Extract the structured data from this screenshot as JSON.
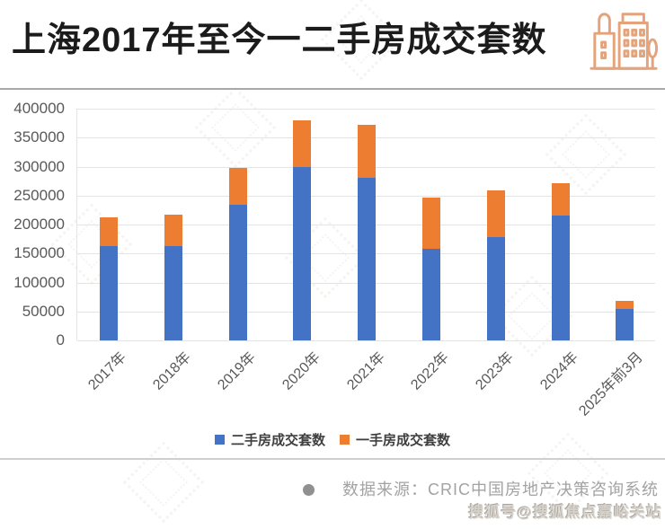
{
  "header": {
    "title": "上海2017年至今一二手房成交套数",
    "icon": "buildings-icon",
    "icon_color": "#E4A37B"
  },
  "chart_data": {
    "type": "bar",
    "stacked": true,
    "title": "上海2017年至今一二手房成交套数",
    "categories": [
      "2017年",
      "2018年",
      "2019年",
      "2020年",
      "2021年",
      "2022年",
      "2023年",
      "2024年",
      "2025年前3月"
    ],
    "series": [
      {
        "name": "二手房成交套数",
        "color": "#4472C4",
        "values": [
          163000,
          163000,
          234000,
          300000,
          280000,
          158000,
          179000,
          216000,
          54000
        ]
      },
      {
        "name": "一手房成交套数",
        "color": "#ED7D31",
        "values": [
          50000,
          54000,
          64000,
          80000,
          92000,
          88000,
          80000,
          56000,
          15000
        ]
      }
    ],
    "ylim": [
      0,
      400000
    ],
    "ytick_step": 50000,
    "grid": true,
    "legend_position": "bottom",
    "xlabel": "",
    "ylabel": ""
  },
  "footer": {
    "source_text": "数据来源：CRIC中国房地产决策咨询系统",
    "watermark": "搜狐号@搜狐焦点嘉峪关站"
  }
}
